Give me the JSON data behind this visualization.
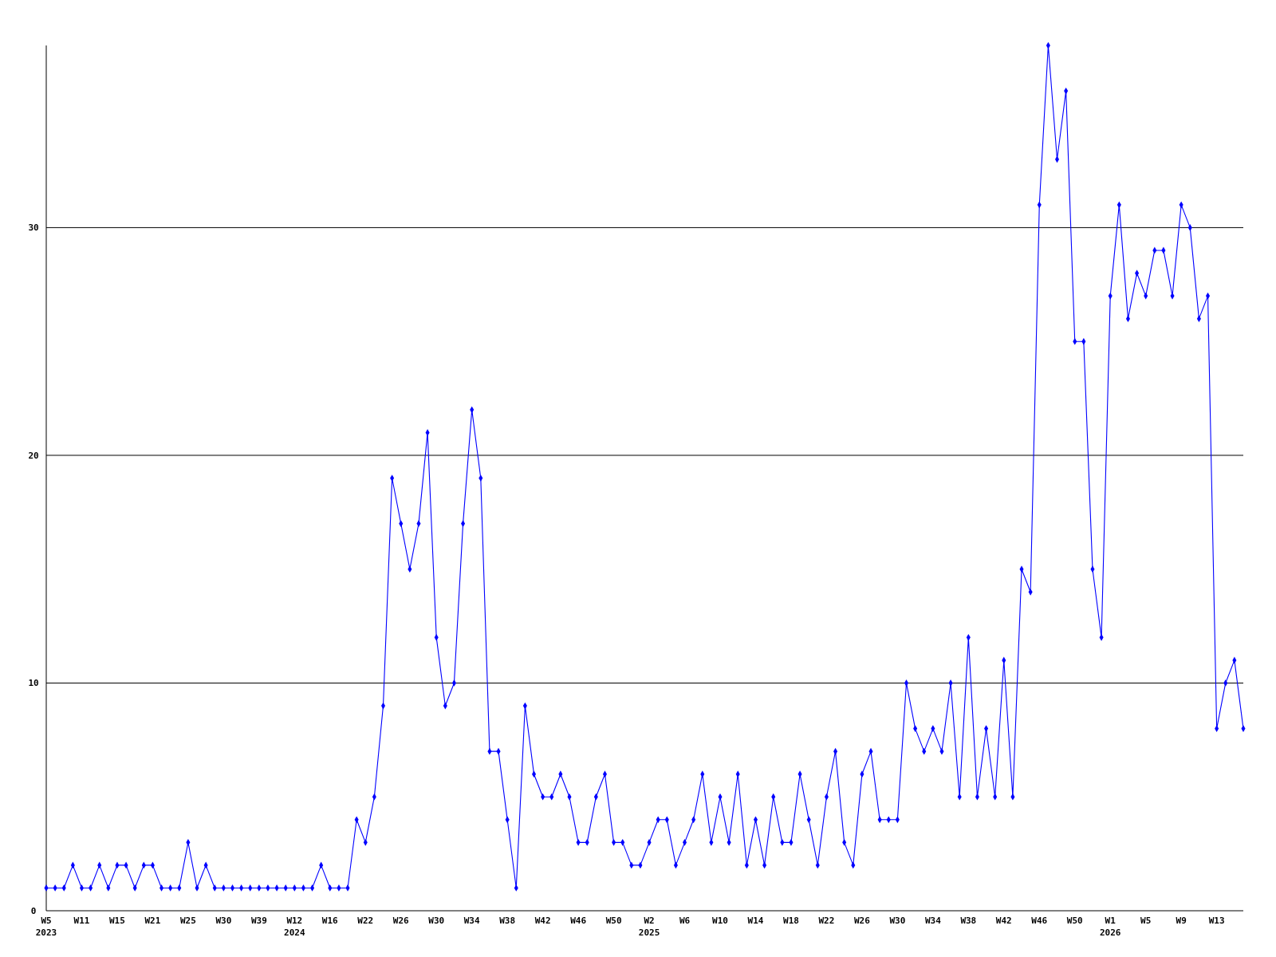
{
  "chart_data": {
    "type": "line",
    "categories": [
      "W5\n2023",
      null,
      null,
      null,
      "W11",
      null,
      null,
      null,
      "W15",
      null,
      null,
      null,
      "W21",
      null,
      null,
      null,
      "W25",
      null,
      null,
      null,
      "W30",
      null,
      null,
      null,
      "W39",
      null,
      null,
      null,
      "W12\n2024",
      null,
      null,
      null,
      "W16",
      null,
      null,
      null,
      "W22",
      null,
      null,
      null,
      "W26",
      null,
      null,
      null,
      "W30",
      null,
      null,
      null,
      "W34",
      null,
      null,
      null,
      "W38",
      null,
      null,
      null,
      "W42",
      null,
      null,
      null,
      "W46",
      null,
      null,
      null,
      "W50",
      null,
      null,
      null,
      "W2\n2025",
      null,
      null,
      null,
      "W6",
      null,
      null,
      null,
      "W10",
      null,
      null,
      null,
      "W14",
      null,
      null,
      null,
      "W18",
      null,
      null,
      null,
      "W22",
      null,
      null,
      null,
      "W26",
      null,
      null,
      null,
      "W30",
      null,
      null,
      null,
      "W34",
      null,
      null,
      null,
      "W38",
      null,
      null,
      null,
      "W42",
      null,
      null,
      null,
      "W46",
      null,
      null,
      null,
      "W50",
      null,
      null,
      null,
      "W1\n2026",
      null,
      null,
      null,
      "W5",
      null,
      null,
      null,
      "W9",
      null,
      null,
      null,
      "W13",
      null,
      null,
      null
    ],
    "series": [
      {
        "color": "#0000ff",
        "values": [
          1,
          1,
          1,
          2,
          1,
          1,
          2,
          1,
          2,
          2,
          1,
          2,
          2,
          1,
          1,
          1,
          3,
          1,
          2,
          1,
          1,
          1,
          1,
          1,
          1,
          1,
          1,
          1,
          1,
          1,
          1,
          2,
          1,
          1,
          1,
          4,
          3,
          5,
          9,
          19,
          17,
          15,
          17,
          21,
          12,
          9,
          10,
          17,
          22,
          19,
          7,
          7,
          4,
          1,
          9,
          6,
          5,
          5,
          6,
          5,
          3,
          3,
          5,
          6,
          3,
          3,
          2,
          2,
          3,
          4,
          4,
          2,
          3,
          4,
          6,
          3,
          5,
          3,
          6,
          2,
          4,
          2,
          5,
          3,
          3,
          6,
          4,
          2,
          5,
          7,
          3,
          2,
          6,
          7,
          4,
          4,
          4,
          10,
          8,
          7,
          8,
          7,
          10,
          5,
          12,
          5,
          8,
          5,
          11,
          5,
          15,
          14,
          31,
          38,
          33,
          36,
          25,
          25,
          15,
          12,
          27,
          31,
          26,
          28,
          27,
          29,
          29,
          27,
          31,
          30,
          26,
          27,
          8,
          10,
          11,
          8
        ]
      }
    ],
    "ylim": [
      0,
      38
    ],
    "yticks": [
      0,
      10,
      20,
      30
    ],
    "grid": "y",
    "marker": "diamond",
    "line_style": "solid"
  }
}
